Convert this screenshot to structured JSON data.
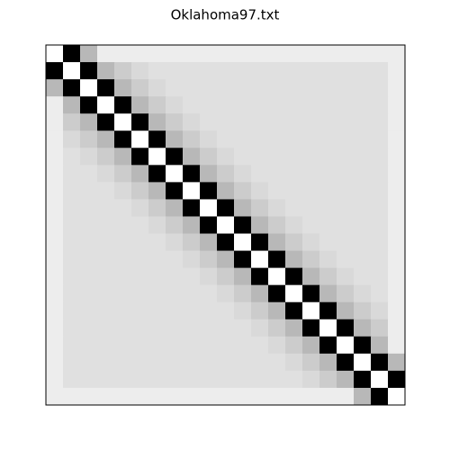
{
  "chart_data": {
    "type": "heatmap",
    "title": "Oklahoma97.txt",
    "cmap": "gray",
    "zlim": [
      0,
      1
    ],
    "z": [
      [
        1,
        0,
        0.72,
        0.93,
        0.93,
        0.93,
        0.93,
        0.93,
        0.93,
        0.93,
        0.93,
        0.93,
        0.93,
        0.93,
        0.93,
        0.93,
        0.93,
        0.93,
        0.93,
        0.93,
        0.93
      ],
      [
        0,
        1,
        0,
        0.72,
        0.8,
        0.85,
        0.88,
        0.88,
        0.88,
        0.88,
        0.88,
        0.88,
        0.88,
        0.88,
        0.88,
        0.88,
        0.88,
        0.88,
        0.88,
        0.88,
        0.93
      ],
      [
        0.72,
        0,
        1,
        0,
        0.72,
        0.8,
        0.85,
        0.88,
        0.88,
        0.88,
        0.88,
        0.88,
        0.88,
        0.88,
        0.88,
        0.88,
        0.88,
        0.88,
        0.88,
        0.88,
        0.93
      ],
      [
        0.93,
        0.72,
        0,
        1,
        0,
        0.72,
        0.8,
        0.85,
        0.88,
        0.88,
        0.88,
        0.88,
        0.88,
        0.88,
        0.88,
        0.88,
        0.88,
        0.88,
        0.88,
        0.88,
        0.93
      ],
      [
        0.93,
        0.8,
        0.72,
        0,
        1,
        0,
        0.72,
        0.8,
        0.85,
        0.88,
        0.88,
        0.88,
        0.88,
        0.88,
        0.88,
        0.88,
        0.88,
        0.88,
        0.88,
        0.88,
        0.93
      ],
      [
        0.93,
        0.85,
        0.8,
        0.72,
        0,
        1,
        0,
        0.72,
        0.8,
        0.85,
        0.88,
        0.88,
        0.88,
        0.88,
        0.88,
        0.88,
        0.88,
        0.88,
        0.88,
        0.88,
        0.93
      ],
      [
        0.93,
        0.88,
        0.85,
        0.8,
        0.72,
        0,
        1,
        0,
        0.72,
        0.8,
        0.85,
        0.88,
        0.88,
        0.88,
        0.88,
        0.88,
        0.88,
        0.88,
        0.88,
        0.88,
        0.93
      ],
      [
        0.93,
        0.88,
        0.88,
        0.85,
        0.8,
        0.72,
        0,
        1,
        0,
        0.72,
        0.8,
        0.85,
        0.88,
        0.88,
        0.88,
        0.88,
        0.88,
        0.88,
        0.88,
        0.88,
        0.93
      ],
      [
        0.93,
        0.88,
        0.88,
        0.88,
        0.85,
        0.8,
        0.72,
        0,
        1,
        0,
        0.72,
        0.8,
        0.85,
        0.88,
        0.88,
        0.88,
        0.88,
        0.88,
        0.88,
        0.88,
        0.93
      ],
      [
        0.93,
        0.88,
        0.88,
        0.88,
        0.88,
        0.85,
        0.8,
        0.72,
        0,
        1,
        0,
        0.72,
        0.8,
        0.85,
        0.88,
        0.88,
        0.88,
        0.88,
        0.88,
        0.88,
        0.93
      ],
      [
        0.93,
        0.88,
        0.88,
        0.88,
        0.88,
        0.88,
        0.85,
        0.8,
        0.72,
        0,
        1,
        0,
        0.72,
        0.8,
        0.85,
        0.88,
        0.88,
        0.88,
        0.88,
        0.88,
        0.93
      ],
      [
        0.93,
        0.88,
        0.88,
        0.88,
        0.88,
        0.88,
        0.88,
        0.85,
        0.8,
        0.72,
        0,
        1,
        0,
        0.72,
        0.8,
        0.85,
        0.88,
        0.88,
        0.88,
        0.88,
        0.93
      ],
      [
        0.93,
        0.88,
        0.88,
        0.88,
        0.88,
        0.88,
        0.88,
        0.88,
        0.85,
        0.8,
        0.72,
        0,
        1,
        0,
        0.72,
        0.8,
        0.85,
        0.88,
        0.88,
        0.88,
        0.93
      ],
      [
        0.93,
        0.88,
        0.88,
        0.88,
        0.88,
        0.88,
        0.88,
        0.88,
        0.88,
        0.85,
        0.8,
        0.72,
        0,
        1,
        0,
        0.72,
        0.8,
        0.85,
        0.88,
        0.88,
        0.93
      ],
      [
        0.93,
        0.88,
        0.88,
        0.88,
        0.88,
        0.88,
        0.88,
        0.88,
        0.88,
        0.88,
        0.85,
        0.8,
        0.72,
        0,
        1,
        0,
        0.72,
        0.8,
        0.85,
        0.88,
        0.93
      ],
      [
        0.93,
        0.88,
        0.88,
        0.88,
        0.88,
        0.88,
        0.88,
        0.88,
        0.88,
        0.88,
        0.88,
        0.85,
        0.8,
        0.72,
        0,
        1,
        0,
        0.72,
        0.8,
        0.85,
        0.93
      ],
      [
        0.93,
        0.88,
        0.88,
        0.88,
        0.88,
        0.88,
        0.88,
        0.88,
        0.88,
        0.88,
        0.88,
        0.88,
        0.85,
        0.8,
        0.72,
        0,
        1,
        0,
        0.72,
        0.8,
        0.93
      ],
      [
        0.93,
        0.88,
        0.88,
        0.88,
        0.88,
        0.88,
        0.88,
        0.88,
        0.88,
        0.88,
        0.88,
        0.88,
        0.88,
        0.85,
        0.8,
        0.72,
        0,
        1,
        0,
        0.72,
        0.93
      ],
      [
        0.93,
        0.88,
        0.88,
        0.88,
        0.88,
        0.88,
        0.88,
        0.88,
        0.88,
        0.88,
        0.88,
        0.88,
        0.88,
        0.88,
        0.85,
        0.8,
        0.72,
        0,
        1,
        0,
        0.72
      ],
      [
        0.93,
        0.88,
        0.88,
        0.88,
        0.88,
        0.88,
        0.88,
        0.88,
        0.88,
        0.88,
        0.88,
        0.88,
        0.88,
        0.88,
        0.88,
        0.85,
        0.8,
        0.72,
        0,
        1,
        0
      ],
      [
        0.93,
        0.93,
        0.93,
        0.93,
        0.93,
        0.93,
        0.93,
        0.93,
        0.93,
        0.93,
        0.93,
        0.93,
        0.93,
        0.93,
        0.93,
        0.93,
        0.93,
        0.93,
        0.72,
        0,
        1
      ]
    ]
  }
}
